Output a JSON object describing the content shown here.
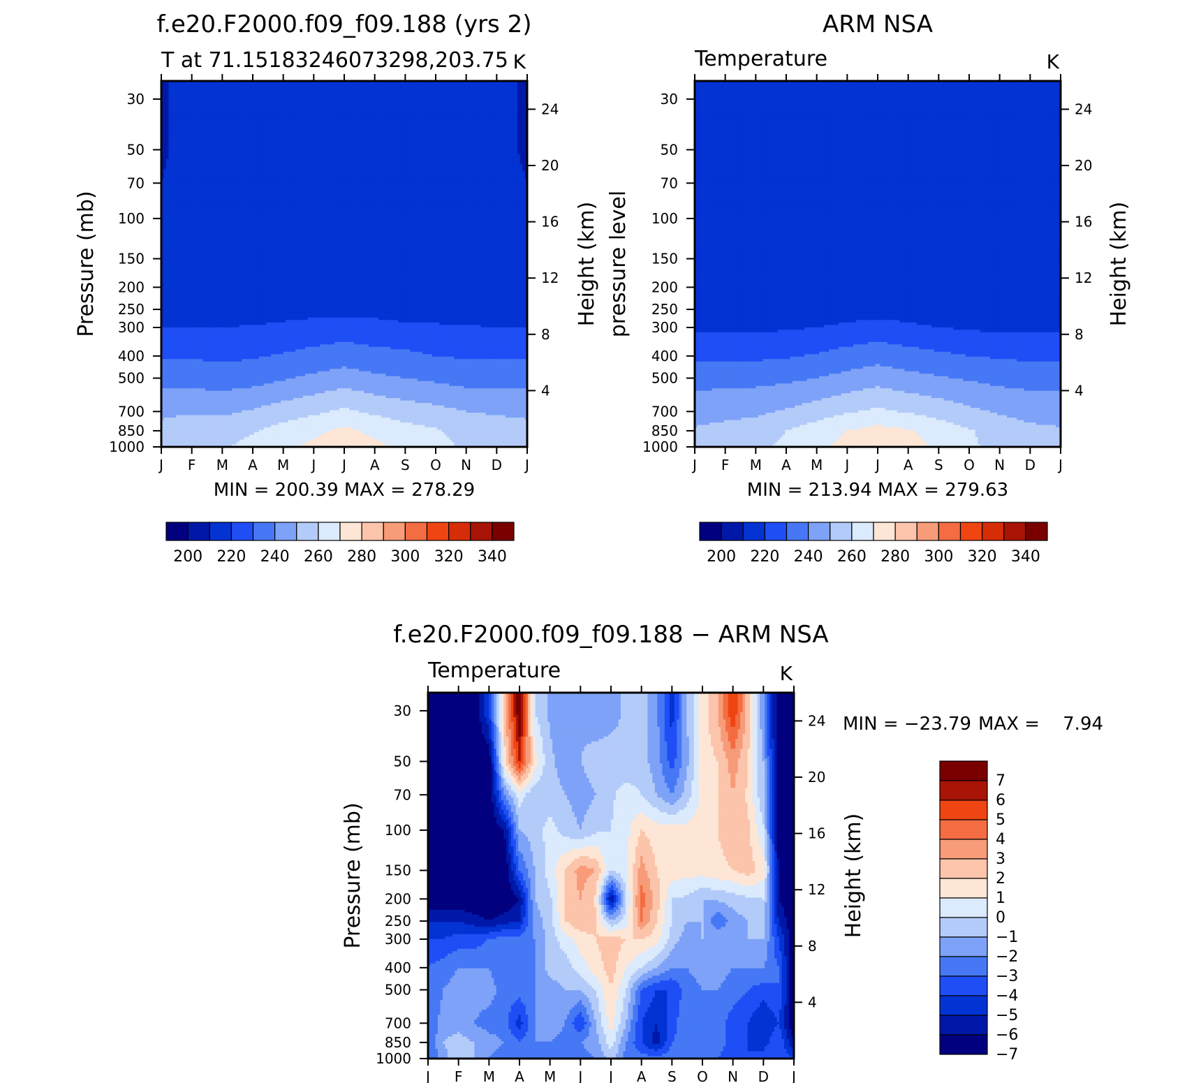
{
  "palette": {
    "temperature": [
      "#02007f",
      "#0018a8",
      "#0333d3",
      "#1f4ef5",
      "#4678f5",
      "#7ea2f7",
      "#b3cbf9",
      "#dbeafc",
      "#fde6d5",
      "#fbc4ab",
      "#f79b78",
      "#f46c42",
      "#ee4512",
      "#d62c08",
      "#a81405",
      "#7a0000"
    ],
    "difference": [
      "#02007f",
      "#0018a8",
      "#0333d3",
      "#1f4ef5",
      "#4678f5",
      "#7ea2f7",
      "#b3cbf9",
      "#dbeafc",
      "#fde6d5",
      "#fbc4ab",
      "#f79b78",
      "#f46c42",
      "#ee4512",
      "#a81405",
      "#7a0000"
    ]
  },
  "chart_data": [
    {
      "type": "heatmap",
      "title": "f.e20.F2000.f09_f09.188 (yrs 2)",
      "subtitle": "T at 71.15183246073298,203.75",
      "units": "K",
      "ylabel": "Pressure (mb)",
      "ylabel_right": "Height (km)",
      "x_ticks": [
        "J",
        "F",
        "M",
        "A",
        "M",
        "J",
        "J",
        "A",
        "S",
        "O",
        "N",
        "D",
        "J"
      ],
      "y_ticks": [
        "30",
        "50",
        "70",
        "100",
        "150",
        "200",
        "250",
        "300",
        "400",
        "500",
        "700",
        "850",
        "1000"
      ],
      "y_right_ticks": [
        "24",
        "20",
        "16",
        "12",
        "8",
        "4"
      ],
      "stats": "MIN = 200.39 MAX = 278.29",
      "colorbar_labels": [
        "200",
        "220",
        "240",
        "260",
        "280",
        "300",
        "320",
        "340"
      ],
      "levels": [
        200,
        210,
        220,
        230,
        240,
        250,
        260,
        270,
        280,
        290,
        300,
        310,
        320,
        330,
        340
      ],
      "x": [
        1,
        2,
        3,
        4,
        5,
        6,
        7,
        8,
        9,
        10,
        11,
        12,
        13
      ],
      "pressure": [
        30,
        50,
        70,
        100,
        150,
        200,
        250,
        300,
        400,
        500,
        700,
        850,
        1000
      ],
      "grid": [
        [
          209,
          213,
          214,
          214,
          214,
          214,
          214,
          214,
          213,
          212,
          212,
          212,
          209
        ],
        [
          209,
          213,
          214,
          214,
          214,
          214,
          214,
          214,
          213,
          212,
          212,
          212,
          209
        ],
        [
          210,
          213,
          214,
          215,
          215,
          215,
          215,
          215,
          214,
          213,
          213,
          213,
          210
        ],
        [
          211,
          213,
          214,
          215,
          215,
          215,
          215,
          215,
          215,
          214,
          213,
          213,
          211
        ],
        [
          213,
          213,
          213,
          215,
          216,
          216,
          216,
          216,
          216,
          215,
          213,
          213,
          213
        ],
        [
          213,
          213,
          213,
          213,
          216,
          216,
          212,
          216,
          213,
          213,
          213,
          213,
          213
        ],
        [
          213,
          213,
          213,
          213,
          216,
          216,
          216,
          216,
          213,
          213,
          213,
          213,
          213
        ],
        [
          220,
          220,
          220,
          221,
          222,
          224,
          225,
          224,
          223,
          222,
          221,
          220,
          220
        ],
        [
          229,
          229,
          228,
          229,
          231,
          233,
          235,
          233,
          232,
          230,
          229,
          229,
          229
        ],
        [
          236,
          236,
          235,
          236,
          239,
          242,
          245,
          242,
          240,
          238,
          236,
          236,
          236
        ],
        [
          248,
          249,
          248,
          251,
          255,
          258,
          262,
          258,
          255,
          253,
          250,
          249,
          248
        ],
        [
          253,
          256,
          256,
          259,
          264,
          268,
          272,
          268,
          264,
          261,
          256,
          254,
          253
        ],
        [
          256,
          259,
          259,
          263,
          268,
          272,
          276,
          272,
          268,
          264,
          258,
          256,
          256
        ]
      ]
    },
    {
      "type": "heatmap",
      "title": "ARM NSA",
      "subtitle": "Temperature",
      "units": "K",
      "ylabel": "pressure level",
      "ylabel_right": "Height (km)",
      "x_ticks": [
        "J",
        "F",
        "M",
        "A",
        "M",
        "J",
        "J",
        "A",
        "S",
        "O",
        "N",
        "D",
        "J"
      ],
      "y_ticks": [
        "30",
        "50",
        "70",
        "100",
        "150",
        "200",
        "250",
        "300",
        "400",
        "500",
        "700",
        "850",
        "1000"
      ],
      "y_right_ticks": [
        "24",
        "20",
        "16",
        "12",
        "8",
        "4"
      ],
      "stats": "MIN = 213.94 MAX = 279.63",
      "colorbar_labels": [
        "200",
        "220",
        "240",
        "260",
        "280",
        "300",
        "320",
        "340"
      ],
      "levels": [
        200,
        210,
        220,
        230,
        240,
        250,
        260,
        270,
        280,
        290,
        300,
        310,
        320,
        330,
        340
      ],
      "x": [
        1,
        2,
        3,
        4,
        5,
        6,
        7,
        8,
        9,
        10,
        11,
        12,
        13
      ],
      "pressure": [
        30,
        50,
        70,
        100,
        150,
        200,
        250,
        300,
        400,
        500,
        700,
        850,
        1000
      ],
      "grid": [
        [
          215,
          215,
          215,
          215,
          215,
          215,
          216,
          215,
          215,
          212,
          212,
          212,
          215
        ],
        [
          215,
          215,
          215,
          215,
          215,
          215,
          215,
          215,
          215,
          213,
          212,
          212,
          215
        ],
        [
          215,
          215,
          215,
          215,
          215,
          215,
          215,
          215,
          215,
          214,
          213,
          213,
          215
        ],
        [
          215,
          215,
          215,
          215,
          215,
          215,
          215,
          215,
          215,
          215,
          214,
          214,
          215
        ],
        [
          214,
          215,
          215,
          215,
          215,
          215,
          215,
          215,
          215,
          215,
          214,
          214,
          214
        ],
        [
          214,
          214,
          214,
          214,
          215,
          215,
          215,
          215,
          215,
          214,
          214,
          214,
          214
        ],
        [
          213,
          213,
          213,
          213,
          214,
          215,
          215,
          215,
          214,
          213,
          213,
          213,
          213
        ],
        [
          218,
          218,
          218,
          219,
          220,
          222,
          224,
          222,
          220,
          219,
          218,
          218,
          218
        ],
        [
          228,
          228,
          228,
          229,
          231,
          234,
          236,
          234,
          232,
          230,
          229,
          228,
          228
        ],
        [
          236,
          237,
          237,
          238,
          240,
          243,
          246,
          243,
          241,
          239,
          237,
          236,
          236
        ],
        [
          246,
          247,
          248,
          251,
          255,
          259,
          262,
          259,
          256,
          252,
          249,
          247,
          246
        ],
        [
          251,
          253,
          255,
          260,
          265,
          270,
          273,
          271,
          266,
          261,
          255,
          252,
          251
        ],
        [
          253,
          256,
          258,
          262,
          268,
          273,
          276,
          274,
          268,
          262,
          256,
          253,
          253
        ]
      ]
    },
    {
      "type": "heatmap",
      "title": "f.e20.F2000.f09_f09.188 − ARM NSA",
      "subtitle": "Temperature",
      "units": "K",
      "ylabel": "Pressure (mb)",
      "ylabel_right": "Height (km)",
      "x_ticks": [
        "J",
        "F",
        "M",
        "A",
        "M",
        "J",
        "J",
        "A",
        "S",
        "O",
        "N",
        "D",
        "J"
      ],
      "y_ticks": [
        "30",
        "50",
        "70",
        "100",
        "150",
        "200",
        "250",
        "300",
        "400",
        "500",
        "700",
        "850",
        "1000"
      ],
      "y_right_ticks": [
        "24",
        "20",
        "16",
        "12",
        "8",
        "4"
      ],
      "stats_min": "MIN = −23.79",
      "stats_max": "MAX =    7.94",
      "colorbar_labels": [
        "7",
        "6",
        "5",
        "4",
        "3",
        "2",
        "1",
        "0",
        "−1",
        "−2",
        "−3",
        "−4",
        "−5",
        "−6",
        "−7"
      ],
      "levels": [
        -7,
        -6,
        -5,
        -4,
        -3,
        -2,
        -1,
        0,
        1,
        2,
        3,
        4,
        5,
        6
      ],
      "x": [
        1,
        1.5,
        2,
        2.5,
        3,
        3.5,
        4,
        4.5,
        5,
        5.5,
        6,
        6.5,
        7,
        7.5,
        8,
        8.5,
        9,
        9.5,
        10,
        10.5,
        11,
        11.5,
        12,
        12.5,
        13
      ],
      "pressure": [
        30,
        50,
        70,
        100,
        150,
        200,
        250,
        300,
        400,
        500,
        700,
        850,
        1000
      ],
      "grid": [
        [
          -8,
          -8,
          -8,
          -8,
          -5,
          1.5,
          7,
          -1,
          -2.2,
          -2,
          -2.2,
          -2.8,
          -2.4,
          -1.8,
          -1.5,
          -2.8,
          -5.5,
          -2,
          0.5,
          2,
          5,
          1.5,
          -3,
          -8,
          -8
        ],
        [
          -8,
          -8,
          -8,
          -8,
          -8,
          0.5,
          5,
          0.5,
          -1.8,
          -2.5,
          -2,
          -1.5,
          -1.5,
          -1.8,
          -1.6,
          -2.5,
          -4.5,
          -2.2,
          0.5,
          1,
          2.5,
          1,
          -2,
          -8,
          -8
        ],
        [
          -8,
          -8,
          -8,
          -8,
          -8,
          -3,
          -0.5,
          -1.8,
          -1.5,
          -2,
          -2.5,
          -2,
          -1.2,
          -0.5,
          -1,
          -2,
          -3,
          -1.5,
          0.3,
          1,
          2,
          0.8,
          -2,
          -8,
          -8
        ],
        [
          -8,
          -8,
          -8,
          -8,
          -8,
          -7,
          -2,
          -1.5,
          -0.6,
          -1.4,
          -2,
          -1.2,
          -1,
          -0.3,
          1,
          0.5,
          0.5,
          0.4,
          0.5,
          1,
          1.5,
          1.2,
          -0.8,
          -8,
          -8
        ],
        [
          -8,
          -8,
          -8,
          -8,
          -8,
          -8,
          -4,
          -2,
          -0.5,
          1,
          2.5,
          2,
          -1,
          -0.3,
          2.5,
          1,
          0.5,
          0.5,
          0.5,
          0.8,
          1,
          1.5,
          0.5,
          -7,
          -8
        ],
        [
          -8,
          -8,
          -8,
          -8,
          -8,
          -8,
          -7,
          -2,
          -1.2,
          1.2,
          2,
          0.8,
          -7,
          -1,
          3.5,
          1.5,
          -1,
          -1.2,
          -2,
          -1.8,
          -1.5,
          -1.2,
          -1,
          -7,
          -8
        ],
        [
          -6,
          -6,
          -6,
          -6.5,
          -7,
          -6.5,
          -6,
          -2.5,
          -1.5,
          1,
          1.8,
          1.2,
          -2,
          -0.5,
          3,
          1,
          -1,
          -2,
          -2,
          -4,
          -2.5,
          -2,
          -1.5,
          -6,
          -8
        ],
        [
          -5,
          -5,
          -4.5,
          -4.5,
          -4,
          -3.5,
          -3.5,
          -3,
          -1.5,
          -0.5,
          0.5,
          1,
          1.5,
          1,
          1,
          0.5,
          -1.5,
          -2.5,
          -2,
          -2,
          -2,
          -2,
          -2,
          -5,
          -8
        ],
        [
          -4,
          -3.5,
          -3,
          -3,
          -3,
          -4,
          -3,
          -3,
          -1.5,
          -1.5,
          -0.5,
          0.5,
          1.5,
          0,
          -1,
          -2,
          -3,
          -3,
          -2.5,
          -2.5,
          -3,
          -3,
          -3,
          -4,
          -8
        ],
        [
          -4,
          -3,
          -2.5,
          -2.5,
          -2.5,
          -3.5,
          -3.5,
          -3,
          -2.5,
          -2,
          -2,
          -1,
          1,
          -1,
          -4,
          -5,
          -5,
          -3.5,
          -3,
          -3,
          -3.5,
          -4,
          -4.5,
          -4,
          -8
        ],
        [
          -4,
          -2.5,
          -2.5,
          -3,
          -3.5,
          -3.5,
          -5.5,
          -3,
          -2,
          -3,
          -5,
          -2,
          0.5,
          -2,
          -5,
          -6,
          -4.5,
          -3,
          -3.5,
          -3.5,
          -4.5,
          -5,
          -6,
          -5,
          -8
        ],
        [
          -4,
          -2,
          -1.5,
          -2,
          -2.5,
          -3,
          -4,
          -3,
          -3,
          -3.5,
          -3,
          -2.5,
          -0.5,
          -3,
          -5,
          -6.5,
          -4,
          -3.5,
          -3.5,
          -3.5,
          -4.5,
          -5,
          -5.5,
          -4,
          -7
        ],
        [
          -4,
          -2.5,
          -1,
          -2,
          -3,
          -3.5,
          -3.5,
          -3.5,
          -4,
          -4,
          -3.5,
          -3,
          -1.5,
          -3.5,
          -3.5,
          -3.5,
          -3.5,
          -3.5,
          -3.5,
          -4,
          -4.5,
          -5,
          -4.5,
          -4,
          -5
        ]
      ]
    }
  ]
}
